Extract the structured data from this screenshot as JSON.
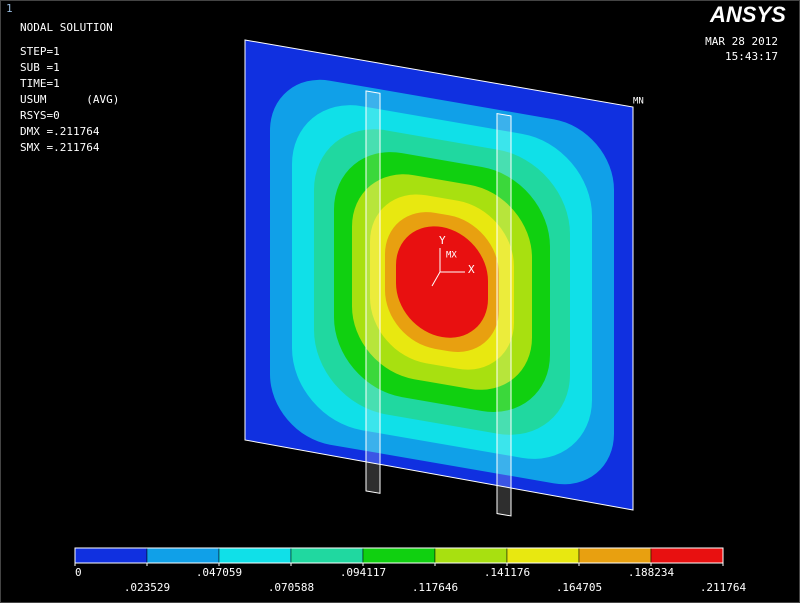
{
  "window_number": "1",
  "title": "NODAL SOLUTION",
  "info": [
    "STEP=1",
    "SUB =1",
    "TIME=1",
    "USUM      (AVG)",
    "RSYS=0",
    "DMX =.211764",
    "SMX =.211764"
  ],
  "logo": "ANSYS",
  "date": "MAR 28 2012",
  "time": "15:43:17",
  "labels": {
    "mn": "MN",
    "mx": "MX",
    "x_axis": "X",
    "y_axis": "Y"
  },
  "legend": {
    "colors": [
      "#1030e0",
      "#10a0e8",
      "#10e0e8",
      "#20d8a0",
      "#10d010",
      "#a8e010",
      "#e8e810",
      "#e8a010",
      "#e81010"
    ],
    "ticks": [
      "0",
      ".023529",
      ".047059",
      ".070588",
      ".094117",
      ".117646",
      ".141176",
      ".164705",
      ".188234",
      ".211764"
    ]
  }
}
